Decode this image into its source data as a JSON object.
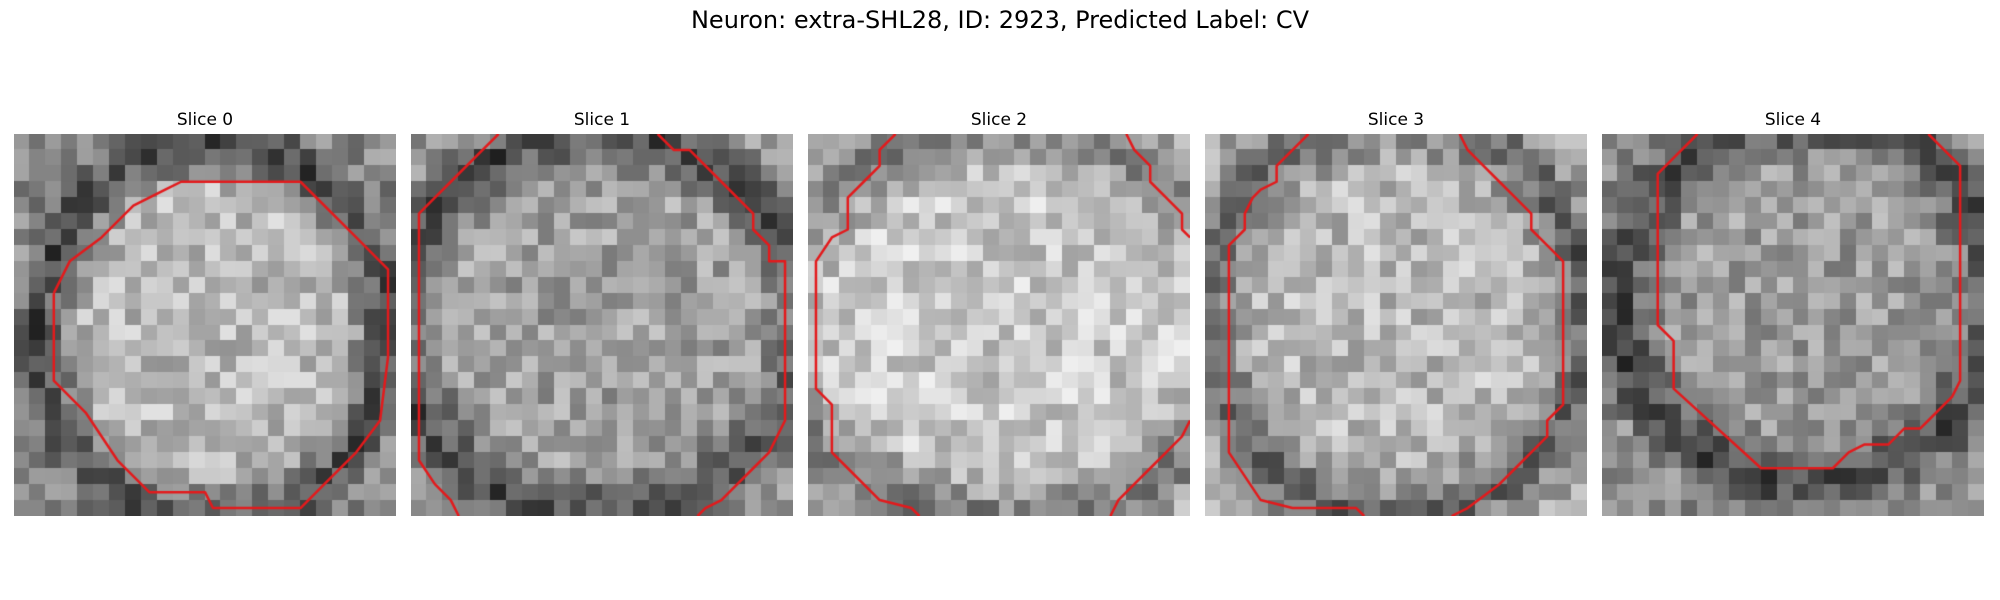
{
  "figure": {
    "title": "Neuron: extra-SHL28, ID: 2923, Predicted Label: CV",
    "contour_color": "#e31a1c"
  },
  "panels": [
    {
      "title": "Slice 0",
      "contours": [
        [
          [
            2.5,
            10
          ],
          [
            3.5,
            8
          ],
          [
            5.5,
            6.5
          ],
          [
            7.5,
            4.5
          ],
          [
            9.5,
            3.5
          ],
          [
            10.5,
            3
          ],
          [
            12.5,
            3
          ],
          [
            18,
            3
          ],
          [
            21.5,
            6.5
          ],
          [
            23.5,
            8.5
          ],
          [
            23.5,
            14
          ],
          [
            23,
            18
          ],
          [
            21.5,
            20
          ],
          [
            19.5,
            22
          ],
          [
            18,
            23.5
          ],
          [
            12.5,
            23.5
          ],
          [
            12,
            22.5
          ],
          [
            8.5,
            22.5
          ],
          [
            6.5,
            20.5
          ],
          [
            4.5,
            17.5
          ],
          [
            2.5,
            15.5
          ],
          [
            2.5,
            10
          ]
        ]
      ]
    },
    {
      "title": "Slice 1",
      "contours": [
        [
          [
            5.5,
            0
          ],
          [
            4.5,
            1
          ],
          [
            2.5,
            3
          ],
          [
            1.5,
            4
          ],
          [
            0.5,
            5
          ],
          [
            0.5,
            20.5
          ],
          [
            1.5,
            22
          ],
          [
            2.5,
            23
          ],
          [
            3,
            24
          ]
        ],
        [
          [
            15.5,
            0
          ],
          [
            16.5,
            1
          ],
          [
            17.5,
            1
          ],
          [
            19.5,
            3
          ],
          [
            21.5,
            5
          ],
          [
            21.5,
            6
          ],
          [
            22.5,
            7
          ],
          [
            22.5,
            8
          ],
          [
            23.5,
            8
          ],
          [
            23.5,
            18
          ],
          [
            22.5,
            20
          ],
          [
            21.5,
            21
          ],
          [
            20.5,
            22
          ],
          [
            19.5,
            23
          ],
          [
            18.5,
            23.5
          ],
          [
            18,
            24
          ]
        ]
      ]
    },
    {
      "title": "Slice 2",
      "contours": [
        [
          [
            5.5,
            0
          ],
          [
            4.5,
            1
          ],
          [
            4.5,
            2
          ],
          [
            3.5,
            3
          ],
          [
            2.5,
            4
          ],
          [
            2.5,
            6
          ],
          [
            1.5,
            6.5
          ],
          [
            0.5,
            8
          ],
          [
            0.5,
            16
          ],
          [
            1.5,
            17
          ],
          [
            1.5,
            20
          ],
          [
            2.5,
            21
          ],
          [
            4.5,
            23
          ],
          [
            6.5,
            23.5
          ],
          [
            7,
            24
          ]
        ],
        [
          [
            20,
            0
          ],
          [
            20.5,
            1
          ],
          [
            21.5,
            2
          ],
          [
            21.5,
            3
          ],
          [
            22.5,
            4
          ],
          [
            23.5,
            5
          ],
          [
            23.5,
            6
          ],
          [
            24,
            6.5
          ]
        ],
        [
          [
            24,
            18
          ],
          [
            23.5,
            19
          ],
          [
            22.5,
            20
          ],
          [
            21.5,
            21
          ],
          [
            20.5,
            22
          ],
          [
            19.5,
            23
          ],
          [
            19,
            24
          ]
        ]
      ]
    },
    {
      "title": "Slice 3",
      "contours": [
        [
          [
            6.5,
            0
          ],
          [
            5.5,
            1
          ],
          [
            4.5,
            2
          ],
          [
            4.5,
            3
          ],
          [
            3.5,
            3.5
          ],
          [
            3,
            4
          ],
          [
            2.5,
            5
          ],
          [
            2.5,
            6
          ],
          [
            1.5,
            7
          ],
          [
            1.5,
            20
          ],
          [
            3.5,
            23
          ],
          [
            5.5,
            23.5
          ],
          [
            9.5,
            23.5
          ],
          [
            10,
            24
          ]
        ],
        [
          [
            16,
            0
          ],
          [
            16.5,
            1
          ],
          [
            17.5,
            2
          ],
          [
            18.5,
            3
          ],
          [
            19.5,
            4
          ],
          [
            20.5,
            5
          ],
          [
            20.5,
            6
          ],
          [
            21.5,
            7
          ],
          [
            22.5,
            8
          ],
          [
            22.5,
            17
          ],
          [
            21.5,
            18
          ],
          [
            21.5,
            19
          ],
          [
            20.5,
            20
          ],
          [
            19.5,
            21
          ],
          [
            18.5,
            22
          ],
          [
            16.5,
            23.5
          ],
          [
            15.5,
            24
          ]
        ]
      ]
    },
    {
      "title": "Slice 4",
      "contours": [
        [
          [
            6,
            0
          ],
          [
            4.5,
            1.5
          ],
          [
            3.5,
            2.5
          ],
          [
            3.5,
            12
          ],
          [
            4.5,
            13
          ],
          [
            4.5,
            16
          ],
          [
            10,
            21
          ],
          [
            14.5,
            21
          ],
          [
            15.5,
            20
          ],
          [
            16.5,
            19.5
          ],
          [
            18,
            19.5
          ],
          [
            19,
            18.5
          ],
          [
            20,
            18.5
          ],
          [
            20.5,
            18
          ],
          [
            22,
            16.5
          ],
          [
            22.5,
            15.5
          ],
          [
            22.5,
            2
          ],
          [
            20.5,
            0
          ]
        ]
      ]
    }
  ]
}
